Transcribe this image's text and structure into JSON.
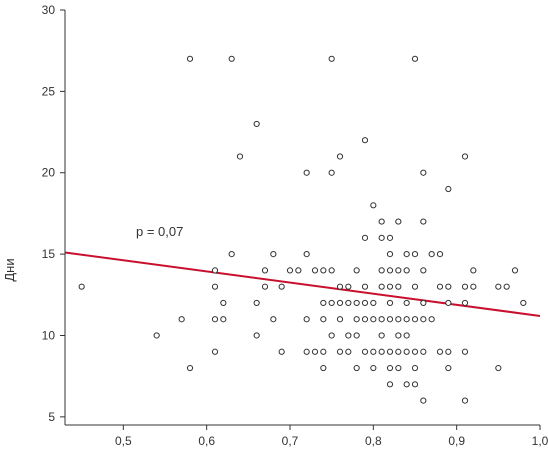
{
  "chart_data": {
    "type": "scatter",
    "title": "",
    "xlabel": "",
    "ylabel": "Дни",
    "xlim": [
      0.43,
      1.0
    ],
    "ylim": [
      4.5,
      30
    ],
    "x_ticks": [
      0.5,
      0.6,
      0.7,
      0.8,
      0.9,
      1.0
    ],
    "x_tick_labels": [
      "0,5",
      "0,6",
      "0,7",
      "0,8",
      "0,9",
      "1,0"
    ],
    "y_ticks": [
      5,
      10,
      15,
      20,
      25,
      30
    ],
    "y_tick_labels": [
      "5",
      "10",
      "15",
      "20",
      "25",
      "30"
    ],
    "grid": false,
    "annotation": "p = 0,07",
    "marker_color": "#333333",
    "trend_color": "#c8102e",
    "trendline": {
      "x": [
        0.43,
        1.0
      ],
      "y": [
        15.1,
        11.2
      ]
    },
    "points": [
      [
        0.45,
        13
      ],
      [
        0.54,
        10
      ],
      [
        0.57,
        11
      ],
      [
        0.58,
        27
      ],
      [
        0.58,
        8
      ],
      [
        0.61,
        14
      ],
      [
        0.61,
        13
      ],
      [
        0.61,
        11
      ],
      [
        0.61,
        9
      ],
      [
        0.62,
        12
      ],
      [
        0.62,
        11
      ],
      [
        0.63,
        27
      ],
      [
        0.63,
        15
      ],
      [
        0.64,
        21
      ],
      [
        0.66,
        23
      ],
      [
        0.66,
        12
      ],
      [
        0.66,
        10
      ],
      [
        0.67,
        14
      ],
      [
        0.67,
        13
      ],
      [
        0.68,
        15
      ],
      [
        0.68,
        11
      ],
      [
        0.69,
        13
      ],
      [
        0.69,
        9
      ],
      [
        0.7,
        14
      ],
      [
        0.71,
        14
      ],
      [
        0.72,
        20
      ],
      [
        0.72,
        15
      ],
      [
        0.72,
        11
      ],
      [
        0.72,
        9
      ],
      [
        0.73,
        14
      ],
      [
        0.73,
        9
      ],
      [
        0.74,
        14
      ],
      [
        0.74,
        12
      ],
      [
        0.74,
        11
      ],
      [
        0.74,
        9
      ],
      [
        0.74,
        8
      ],
      [
        0.75,
        27
      ],
      [
        0.75,
        20
      ],
      [
        0.75,
        14
      ],
      [
        0.75,
        12
      ],
      [
        0.75,
        10
      ],
      [
        0.76,
        21
      ],
      [
        0.76,
        13
      ],
      [
        0.76,
        12
      ],
      [
        0.76,
        11
      ],
      [
        0.76,
        9
      ],
      [
        0.77,
        13
      ],
      [
        0.77,
        12
      ],
      [
        0.77,
        10
      ],
      [
        0.77,
        9
      ],
      [
        0.78,
        14
      ],
      [
        0.78,
        12
      ],
      [
        0.78,
        11
      ],
      [
        0.78,
        10
      ],
      [
        0.78,
        8
      ],
      [
        0.79,
        22
      ],
      [
        0.79,
        16
      ],
      [
        0.79,
        13
      ],
      [
        0.79,
        12
      ],
      [
        0.79,
        11
      ],
      [
        0.79,
        9
      ],
      [
        0.8,
        18
      ],
      [
        0.8,
        12
      ],
      [
        0.8,
        11
      ],
      [
        0.8,
        9
      ],
      [
        0.8,
        8
      ],
      [
        0.81,
        17
      ],
      [
        0.81,
        16
      ],
      [
        0.81,
        14
      ],
      [
        0.81,
        13
      ],
      [
        0.81,
        11
      ],
      [
        0.81,
        10
      ],
      [
        0.81,
        9
      ],
      [
        0.82,
        16
      ],
      [
        0.82,
        15
      ],
      [
        0.82,
        14
      ],
      [
        0.82,
        13
      ],
      [
        0.82,
        12
      ],
      [
        0.82,
        11
      ],
      [
        0.82,
        9
      ],
      [
        0.82,
        8
      ],
      [
        0.82,
        7
      ],
      [
        0.83,
        17
      ],
      [
        0.83,
        14
      ],
      [
        0.83,
        13
      ],
      [
        0.83,
        11
      ],
      [
        0.83,
        10
      ],
      [
        0.83,
        9
      ],
      [
        0.83,
        8
      ],
      [
        0.84,
        15
      ],
      [
        0.84,
        14
      ],
      [
        0.84,
        12
      ],
      [
        0.84,
        11
      ],
      [
        0.84,
        10
      ],
      [
        0.84,
        9
      ],
      [
        0.84,
        7
      ],
      [
        0.85,
        27
      ],
      [
        0.85,
        15
      ],
      [
        0.85,
        13
      ],
      [
        0.85,
        11
      ],
      [
        0.85,
        9
      ],
      [
        0.85,
        8
      ],
      [
        0.85,
        7
      ],
      [
        0.86,
        20
      ],
      [
        0.86,
        17
      ],
      [
        0.86,
        14
      ],
      [
        0.86,
        12
      ],
      [
        0.86,
        11
      ],
      [
        0.86,
        9
      ],
      [
        0.86,
        6
      ],
      [
        0.87,
        15
      ],
      [
        0.87,
        11
      ],
      [
        0.88,
        15
      ],
      [
        0.88,
        13
      ],
      [
        0.88,
        9
      ],
      [
        0.89,
        19
      ],
      [
        0.89,
        13
      ],
      [
        0.89,
        12
      ],
      [
        0.89,
        9
      ],
      [
        0.89,
        8
      ],
      [
        0.91,
        21
      ],
      [
        0.91,
        13
      ],
      [
        0.91,
        12
      ],
      [
        0.91,
        9
      ],
      [
        0.91,
        6
      ],
      [
        0.92,
        14
      ],
      [
        0.92,
        13
      ],
      [
        0.95,
        13
      ],
      [
        0.95,
        8
      ],
      [
        0.96,
        13
      ],
      [
        0.97,
        14
      ],
      [
        0.98,
        12
      ]
    ]
  }
}
